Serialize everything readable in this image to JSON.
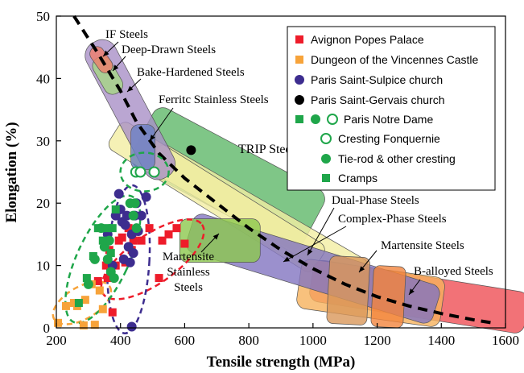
{
  "chart_data": {
    "type": "scatter",
    "xlabel": "Tensile strength (MPa)",
    "ylabel": "Elongation (%)",
    "xlim": [
      200,
      1600
    ],
    "ylim": [
      0,
      50
    ],
    "xticks": [
      200,
      400,
      600,
      800,
      1000,
      1200,
      1400,
      1600
    ],
    "yticks": [
      0,
      10,
      20,
      30,
      40,
      50
    ],
    "grid": false,
    "legend_position": "top-right",
    "legend": {
      "avignon": "Avignon Popes Palace",
      "vincennes": "Dungeon of the Vincennes Castle",
      "sulpice": "Paris Saint-Sulpice church",
      "gervais": "Paris Saint-Gervais church",
      "notre_dame": "Paris Notre Dame",
      "cresting": "Cresting Fonquernie",
      "tierod": "Tie-rod & other cresting",
      "cramps": "Cramps"
    },
    "colors": {
      "avignon": "#ee1c2a",
      "vincennes": "#f7a33a",
      "sulpice": "#3d2d8f",
      "gervais": "#000000",
      "notre_dame": "#1fa64a"
    },
    "steel_grades": [
      {
        "label": "IF Steels",
        "color": "#ef7d6a"
      },
      {
        "label": "Deep-Drawn Steels",
        "color": "#a6d784"
      },
      {
        "label": "Bake-Hardened Steels",
        "color": "#a990c7"
      },
      {
        "label": "Ferritc Stainless Steels",
        "color": "#6b80c4"
      },
      {
        "label": "TRIP Steels",
        "color": "#5fb869"
      },
      {
        "label": "Dual-Phase Steels",
        "color": "#f2eda3"
      },
      {
        "label": "Complex-Phase Steels",
        "color": "#f2eda3"
      },
      {
        "label": "Martensite Stainless Steels",
        "color": "#8cc84e"
      },
      {
        "label": "Martensite Steels",
        "color": "#f6b25d"
      },
      {
        "label": "B-alloyed Steels",
        "color": "#ef4f55"
      }
    ],
    "trend_curve": [
      [
        255,
        50
      ],
      [
        330,
        44
      ],
      [
        400,
        38
      ],
      [
        450,
        33
      ],
      [
        520,
        28
      ],
      [
        600,
        24
      ],
      [
        700,
        20
      ],
      [
        800,
        16
      ],
      [
        900,
        12.5
      ],
      [
        1000,
        9.5
      ],
      [
        1100,
        7
      ],
      [
        1200,
        5
      ],
      [
        1300,
        3.5
      ],
      [
        1400,
        2.3
      ],
      [
        1500,
        1.3
      ],
      [
        1560,
        0.8
      ]
    ],
    "series": [
      {
        "name": "Avignon Popes Palace",
        "marker": "square",
        "points": [
          [
            330,
            7.5
          ],
          [
            355,
            10
          ],
          [
            365,
            12.5
          ],
          [
            375,
            2.5
          ],
          [
            385,
            10
          ],
          [
            395,
            14
          ],
          [
            405,
            14.5
          ],
          [
            415,
            10.5
          ],
          [
            425,
            16
          ],
          [
            435,
            12.5
          ],
          [
            440,
            14
          ],
          [
            465,
            14
          ],
          [
            490,
            16
          ],
          [
            520,
            8
          ],
          [
            530,
            14
          ],
          [
            550,
            15
          ],
          [
            575,
            16
          ],
          [
            600,
            13.5
          ],
          [
            360,
            8
          ]
        ]
      },
      {
        "name": "Dungeon of the Vincennes Castle",
        "marker": "square",
        "points": [
          [
            205,
            0.8
          ],
          [
            230,
            3.5
          ],
          [
            255,
            4
          ],
          [
            265,
            3.5
          ],
          [
            285,
            0.4
          ],
          [
            290,
            4.5
          ],
          [
            310,
            7
          ],
          [
            320,
            0.5
          ],
          [
            335,
            6
          ],
          [
            345,
            3
          ]
        ]
      },
      {
        "name": "Paris Saint-Sulpice church",
        "marker": "circle",
        "points": [
          [
            360,
            15
          ],
          [
            375,
            10
          ],
          [
            385,
            18
          ],
          [
            395,
            21.5
          ],
          [
            400,
            19
          ],
          [
            405,
            17
          ],
          [
            410,
            11
          ],
          [
            415,
            16.5
          ],
          [
            420,
            18
          ],
          [
            430,
            10.5
          ],
          [
            435,
            15
          ],
          [
            440,
            12
          ],
          [
            445,
            18
          ],
          [
            450,
            20
          ],
          [
            455,
            15.5
          ],
          [
            465,
            18
          ],
          [
            480,
            21
          ],
          [
            435,
            0.2
          ],
          [
            425,
            13
          ]
        ]
      },
      {
        "name": "Paris Saint-Gervais church",
        "marker": "circle",
        "points": [
          [
            620,
            28.5
          ]
        ]
      },
      {
        "name": "Cresting Fonquernie",
        "marker": "circle-open",
        "points": [
          [
            448,
            25
          ],
          [
            462,
            25
          ],
          [
            505,
            25
          ]
        ]
      },
      {
        "name": "Tie-rod & other cresting",
        "marker": "circle",
        "points": [
          [
            300,
            7
          ],
          [
            320,
            11
          ],
          [
            340,
            16
          ],
          [
            350,
            13
          ],
          [
            360,
            11
          ],
          [
            365,
            14
          ],
          [
            370,
            9
          ],
          [
            380,
            8
          ],
          [
            430,
            20
          ],
          [
            440,
            18
          ],
          [
            445,
            20
          ],
          [
            450,
            16
          ]
        ]
      },
      {
        "name": "Cramps",
        "marker": "square",
        "points": [
          [
            270,
            4
          ],
          [
            295,
            8
          ],
          [
            315,
            11.5
          ],
          [
            330,
            16
          ],
          [
            345,
            14
          ],
          [
            360,
            16
          ],
          [
            370,
            12
          ],
          [
            375,
            16
          ],
          [
            385,
            19
          ]
        ]
      }
    ]
  }
}
